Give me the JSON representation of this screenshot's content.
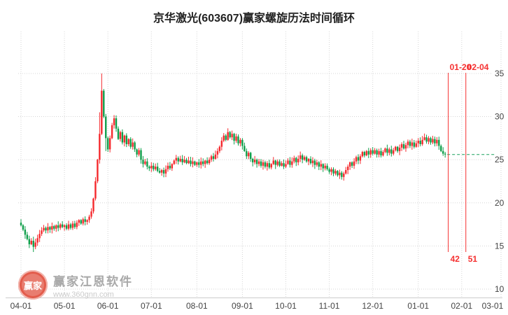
{
  "title": "京华激光(603607)赢家螺旋历法时间循环",
  "colors": {
    "up": "#f5292d",
    "down": "#0f9e4a",
    "grid": "#cccccc",
    "axis_text": "#444444",
    "annotation": "#f53030",
    "last_line": "#18a05a",
    "title": "#222222"
  },
  "watermark": {
    "logo_text": "赢家",
    "brand": "赢家江恩软件",
    "url": "www.360gnn.com"
  },
  "chart_data": {
    "type": "candlestick",
    "title": "京华激光(603607)赢家螺旋历法时间循环",
    "y_axis_side": "right",
    "grid": "dotted",
    "y_ticks": [
      10,
      15,
      20,
      25,
      30,
      35
    ],
    "ylim": [
      10,
      37
    ],
    "x_tick_labels": [
      "04-01",
      "05-01",
      "06-01",
      "07-01",
      "08-01",
      "09-01",
      "10-01",
      "11-01",
      "12-01",
      "01-01",
      "02-01",
      "03-01"
    ],
    "x_gridline_day_indices": [
      0,
      21,
      42,
      63,
      85,
      107,
      128,
      149,
      170,
      192,
      213,
      232
    ],
    "first_open": 17.7,
    "closes": [
      17.4,
      16.9,
      16.3,
      15.8,
      15.2,
      15.6,
      14.9,
      15.4,
      15.9,
      16.4,
      16.8,
      17.1,
      16.8,
      17.2,
      16.9,
      17.3,
      17.0,
      17.4,
      17.1,
      17.5,
      17.2,
      17.4,
      17.0,
      17.5,
      17.1,
      17.6,
      17.2,
      17.7,
      18.0,
      17.6,
      18.1,
      17.8,
      18.0,
      18.4,
      19.0,
      20.5,
      22.5,
      25.0,
      28.0,
      33.0,
      30.0,
      27.5,
      26.2,
      27.5,
      29.0,
      29.8,
      28.6,
      27.4,
      28.2,
      27.0,
      27.8,
      26.8,
      27.4,
      26.5,
      27.0,
      26.2,
      25.6,
      26.1,
      25.0,
      24.5,
      24.8,
      24.2,
      24.0,
      24.3,
      23.9,
      24.2,
      23.7,
      23.5,
      23.8,
      23.4,
      23.9,
      24.3,
      24.0,
      24.5,
      24.9,
      25.2,
      24.8,
      25.1,
      24.7,
      25.0,
      24.6,
      24.9,
      24.5,
      24.8,
      24.4,
      24.7,
      24.4,
      24.8,
      24.5,
      24.9,
      24.6,
      25.0,
      25.4,
      25.1,
      25.6,
      26.0,
      26.5,
      27.2,
      27.8,
      27.3,
      28.2,
      27.6,
      28.0,
      27.2,
      27.7,
      26.9,
      27.3,
      26.6,
      26.0,
      25.4,
      25.8,
      25.1,
      24.7,
      25.0,
      24.5,
      24.8,
      24.3,
      24.7,
      24.2,
      24.6,
      24.1,
      24.5,
      24.9,
      24.4,
      24.8,
      24.3,
      24.6,
      24.2,
      24.5,
      24.9,
      24.4,
      24.8,
      25.2,
      24.7,
      25.1,
      25.5,
      25.0,
      25.3,
      24.8,
      25.1,
      24.6,
      24.9,
      24.4,
      24.7,
      24.2,
      24.5,
      24.0,
      24.3,
      23.9,
      23.6,
      23.9,
      23.4,
      23.7,
      23.2,
      23.5,
      23.0,
      23.4,
      23.8,
      24.2,
      24.7,
      24.3,
      24.8,
      25.3,
      24.9,
      25.4,
      25.9,
      25.5,
      26.0,
      25.6,
      26.1,
      25.7,
      26.1,
      25.6,
      26.0,
      25.5,
      25.9,
      26.3,
      25.8,
      26.2,
      25.7,
      26.1,
      26.5,
      26.0,
      26.4,
      26.8,
      26.3,
      26.7,
      27.1,
      26.6,
      27.0,
      26.5,
      26.9,
      27.2,
      26.8,
      27.3,
      27.6,
      27.1,
      27.5,
      27.0,
      27.4,
      26.9,
      27.3,
      26.6,
      26.0,
      25.7,
      25.6
    ],
    "high_overrides": {
      "38": 30.5,
      "39": 35.0,
      "40": 33.2
    },
    "low_overrides": {
      "6": 14.3,
      "41": 26.0
    },
    "last_close": 25.6,
    "last_close_dashed_line": true,
    "annotations": [
      {
        "date": "01-20",
        "count": "42",
        "day_index": 206.5
      },
      {
        "date": "02-04",
        "count": "51",
        "day_index": 215
      }
    ]
  }
}
